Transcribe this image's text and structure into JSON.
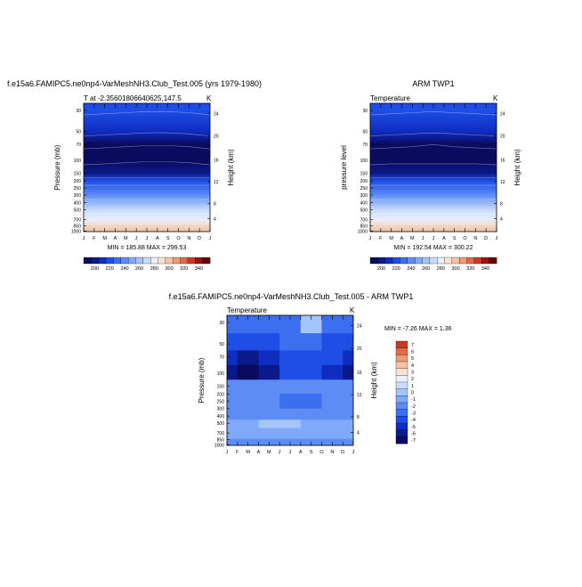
{
  "figure": {
    "model_title": "f.e15a6.FAMIPC5.ne0np4-VarMeshNH3.Club_Test.005 (yrs 1979-1980)",
    "obs_title": "ARM TWP1",
    "diff_title": "f.e15a6.FAMIPC5.ne0np4-VarMeshNH3.Club_Test.005 - ARM TWP1"
  },
  "chart_data": [
    {
      "type": "heatmap",
      "subtitle": "T at -2.35601806640625,147.5",
      "units": "K",
      "ylabel": "Pressure (mb)",
      "ylabel_right": "Height (km)",
      "x": [
        "J",
        "F",
        "M",
        "A",
        "M",
        "J",
        "J",
        "A",
        "S",
        "O",
        "N",
        "D",
        "J"
      ],
      "pressure_ticks": [
        "30",
        "50",
        "70",
        "100",
        "150",
        "200",
        "250",
        "300",
        "400",
        "500",
        "700",
        "850",
        "1000"
      ],
      "height_ticks": [
        "24",
        "20",
        "16",
        "12",
        "8",
        "4"
      ],
      "minmax_label": "MIN = 185.88  MAX = 299.53",
      "colorbar": [
        "200",
        "220",
        "240",
        "260",
        "280",
        "300",
        "320",
        "340"
      ],
      "approx_values": {
        "month_index": [
          0,
          2,
          4,
          6,
          8,
          10,
          12
        ],
        "rows": [
          {
            "p": 30,
            "T": [
              225,
              224,
              223,
              222,
              222,
              223,
              225
            ]
          },
          {
            "p": 50,
            "T": [
              212,
              211,
              210,
              209,
              209,
              210,
              212
            ]
          },
          {
            "p": 70,
            "T": [
              198,
              197,
              196,
              195,
              195,
              196,
              198
            ]
          },
          {
            "p": 100,
            "T": [
              190,
              189,
              188,
              187,
              187,
              188,
              190
            ]
          },
          {
            "p": 150,
            "T": [
              205,
              205,
              205,
              205,
              205,
              205,
              205
            ]
          },
          {
            "p": 200,
            "T": [
              220,
              220,
              220,
              220,
              220,
              220,
              220
            ]
          },
          {
            "p": 300,
            "T": [
              242,
              242,
              242,
              242,
              242,
              242,
              242
            ]
          },
          {
            "p": 500,
            "T": [
              268,
              268,
              268,
              268,
              268,
              268,
              268
            ]
          },
          {
            "p": 700,
            "T": [
              283,
              283,
              283,
              283,
              283,
              283,
              283
            ]
          },
          {
            "p": 1000,
            "T": [
              298,
              298,
              298,
              298,
              298,
              298,
              298
            ]
          }
        ]
      }
    },
    {
      "type": "heatmap",
      "subtitle": "Temperature",
      "units": "K",
      "ylabel": "pressure level",
      "ylabel_right": "Height (km)",
      "x": [
        "J",
        "F",
        "M",
        "A",
        "M",
        "J",
        "J",
        "A",
        "S",
        "O",
        "N",
        "D",
        "J"
      ],
      "pressure_ticks": [
        "30",
        "50",
        "70",
        "100",
        "150",
        "200",
        "250",
        "300",
        "400",
        "500",
        "700",
        "850",
        "1000"
      ],
      "height_ticks": [
        "24",
        "20",
        "16",
        "12",
        "8",
        "4"
      ],
      "minmax_label": "MIN = 192.54  MAX = 300.22",
      "colorbar": [
        "200",
        "220",
        "240",
        "260",
        "280",
        "300",
        "320",
        "340"
      ],
      "approx_values": {
        "month_index": [
          0,
          2,
          4,
          6,
          8,
          10,
          12
        ],
        "rows": [
          {
            "p": 30,
            "T": [
              226,
              225,
              224,
              223,
              224,
              225,
              226
            ]
          },
          {
            "p": 50,
            "T": [
              213,
              212,
              211,
              210,
              211,
              212,
              213
            ]
          },
          {
            "p": 70,
            "T": [
              200,
              199,
              198,
              196,
              198,
              199,
              200
            ]
          },
          {
            "p": 100,
            "T": [
              194,
              193,
              193,
              193,
              193,
              193,
              194
            ]
          },
          {
            "p": 150,
            "T": [
              206,
              206,
              206,
              206,
              206,
              206,
              206
            ]
          },
          {
            "p": 200,
            "T": [
              221,
              221,
              221,
              221,
              221,
              221,
              221
            ]
          },
          {
            "p": 300,
            "T": [
              243,
              243,
              243,
              243,
              243,
              243,
              243
            ]
          },
          {
            "p": 500,
            "T": [
              269,
              269,
              269,
              269,
              269,
              269,
              269
            ]
          },
          {
            "p": 700,
            "T": [
              284,
              284,
              284,
              284,
              284,
              284,
              284
            ]
          },
          {
            "p": 1000,
            "T": [
              299,
              299,
              299,
              299,
              299,
              299,
              299
            ]
          }
        ]
      }
    },
    {
      "type": "heatmap",
      "subtitle": "Temperature",
      "units": "K",
      "ylabel": "Pressure (mb)",
      "ylabel_right": "Height (km)",
      "x": [
        "J",
        "F",
        "M",
        "A",
        "M",
        "J",
        "J",
        "A",
        "S",
        "O",
        "N",
        "D",
        "J"
      ],
      "pressure_ticks": [
        "30",
        "50",
        "70",
        "100",
        "150",
        "200",
        "250",
        "300",
        "400",
        "500",
        "700",
        "850",
        "1000"
      ],
      "height_ticks": [
        "24",
        "20",
        "16",
        "12",
        "8",
        "4"
      ],
      "minmax_label": "MIN =  -7.26  MAX =   1.36",
      "colorbar": [
        "7",
        "6",
        "5",
        "4",
        "3",
        "2",
        "1",
        "0",
        "-1",
        "-2",
        "-3",
        "-4",
        "-5",
        "-6",
        "-7"
      ],
      "approx_values": {
        "month_index": [
          0,
          2,
          4,
          6,
          8,
          10,
          12
        ],
        "rows": [
          {
            "p": 30,
            "dT": [
              -3,
              -3,
              -3,
              -3,
              0,
              -3,
              -3
            ]
          },
          {
            "p": 50,
            "dT": [
              -4,
              -4,
              -4,
              -3,
              -3,
              -4,
              -4
            ]
          },
          {
            "p": 70,
            "dT": [
              -5,
              -6,
              -5,
              -4,
              -4,
              -4,
              -5
            ]
          },
          {
            "p": 100,
            "dT": [
              -6,
              -7,
              -6,
              -4,
              -4,
              -5,
              -6
            ]
          },
          {
            "p": 150,
            "dT": [
              -2,
              -2,
              -2,
              -2,
              -2,
              -2,
              -2
            ]
          },
          {
            "p": 250,
            "dT": [
              -2,
              -2,
              -2,
              -3,
              -3,
              -2,
              -2
            ]
          },
          {
            "p": 400,
            "dT": [
              -2,
              -2,
              -2,
              -2,
              -2,
              -2,
              -2
            ]
          },
          {
            "p": 500,
            "dT": [
              -1,
              -1,
              0,
              0,
              -1,
              -1,
              -1
            ]
          },
          {
            "p": 700,
            "dT": [
              -1,
              -1,
              -1,
              -1,
              -1,
              -1,
              -1
            ]
          },
          {
            "p": 1000,
            "dT": [
              -2,
              -2,
              -2,
              -2,
              -2,
              -2,
              -2
            ]
          }
        ]
      }
    }
  ],
  "colors": {
    "temp_scale": [
      "#0a0a5e",
      "#0b1a8a",
      "#0f2dc0",
      "#1f4ee6",
      "#3c6ef0",
      "#5d8cf5",
      "#7faaf7",
      "#a4c4fa",
      "#c9dbfb",
      "#eaf0fb",
      "#fbe2d0",
      "#f6c2a0",
      "#ee9a73",
      "#e06a48",
      "#c73a26",
      "#9c1410",
      "#6b0406"
    ],
    "diff_scale": [
      "#0a0a5e",
      "#0b1a8a",
      "#0f2dc0",
      "#1f4ee6",
      "#3c6ef0",
      "#5d8cf5",
      "#7faaf7",
      "#a4c4fa",
      "#c9dbfb",
      "#eaf0fb",
      "#fbe2d0",
      "#f6c2a0",
      "#ee9a73",
      "#e06a48",
      "#c73a26",
      "#9c1410"
    ]
  }
}
